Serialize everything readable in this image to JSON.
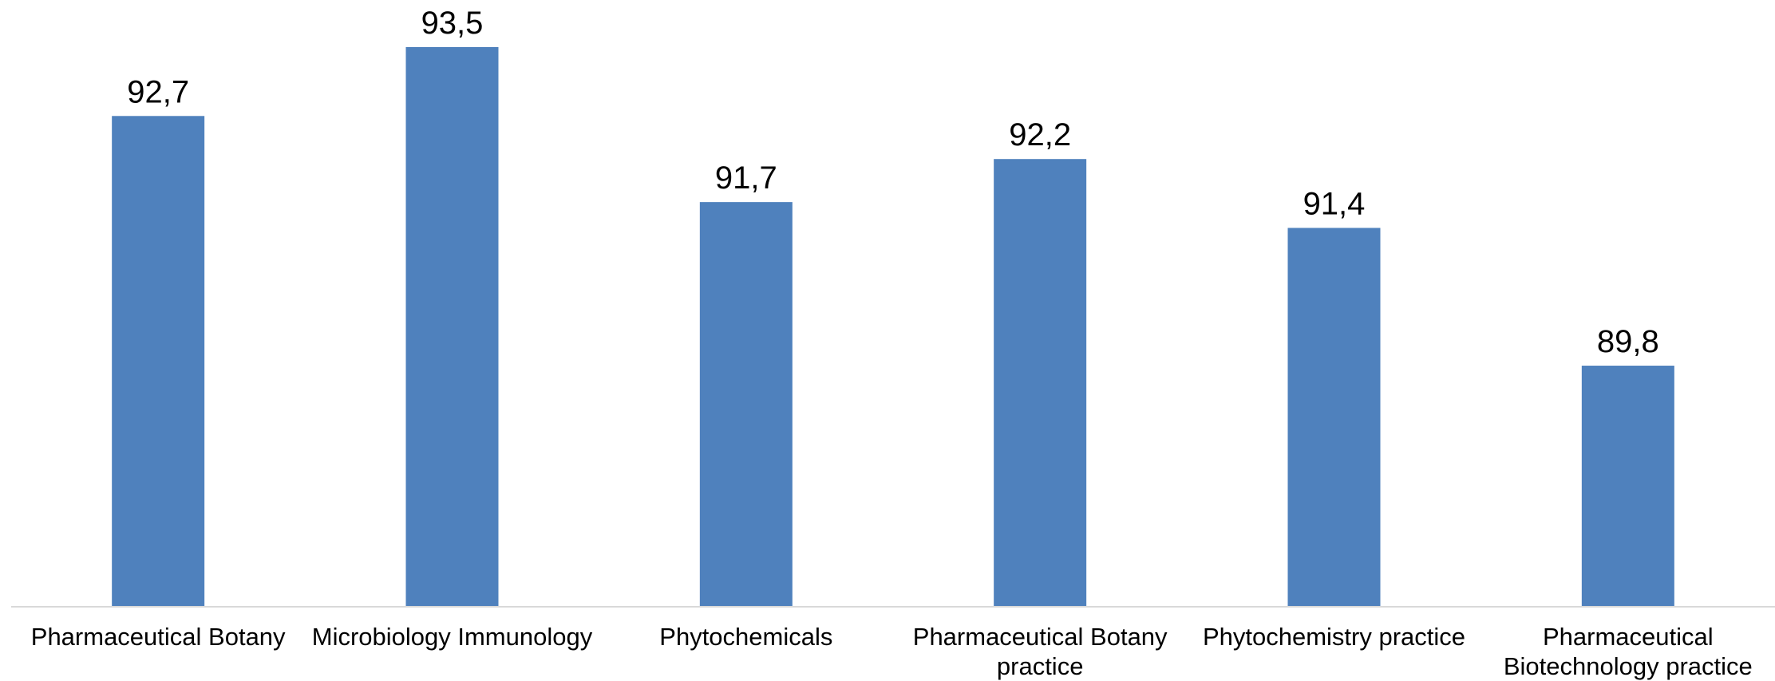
{
  "chart_data": {
    "type": "bar",
    "categories": [
      [
        "Pharmaceutical Botany"
      ],
      [
        "Microbiology Immunology"
      ],
      [
        "Phytochemicals"
      ],
      [
        "Pharmaceutical Botany",
        "practice"
      ],
      [
        "Phytochemistry practice"
      ],
      [
        "Pharmaceutical",
        "Biotechnology practice"
      ]
    ],
    "values": [
      92.7,
      93.5,
      91.7,
      92.2,
      91.4,
      89.8
    ],
    "value_labels": [
      "92,7",
      "93,5",
      "91,7",
      "92,2",
      "91,4",
      "89,8"
    ],
    "title": "",
    "xlabel": "",
    "ylabel": "",
    "ylim": [
      87,
      93.5
    ],
    "grid": false,
    "legend": "none",
    "bar_color": "#4F81BD",
    "axis_color": "#D9D9D9"
  }
}
